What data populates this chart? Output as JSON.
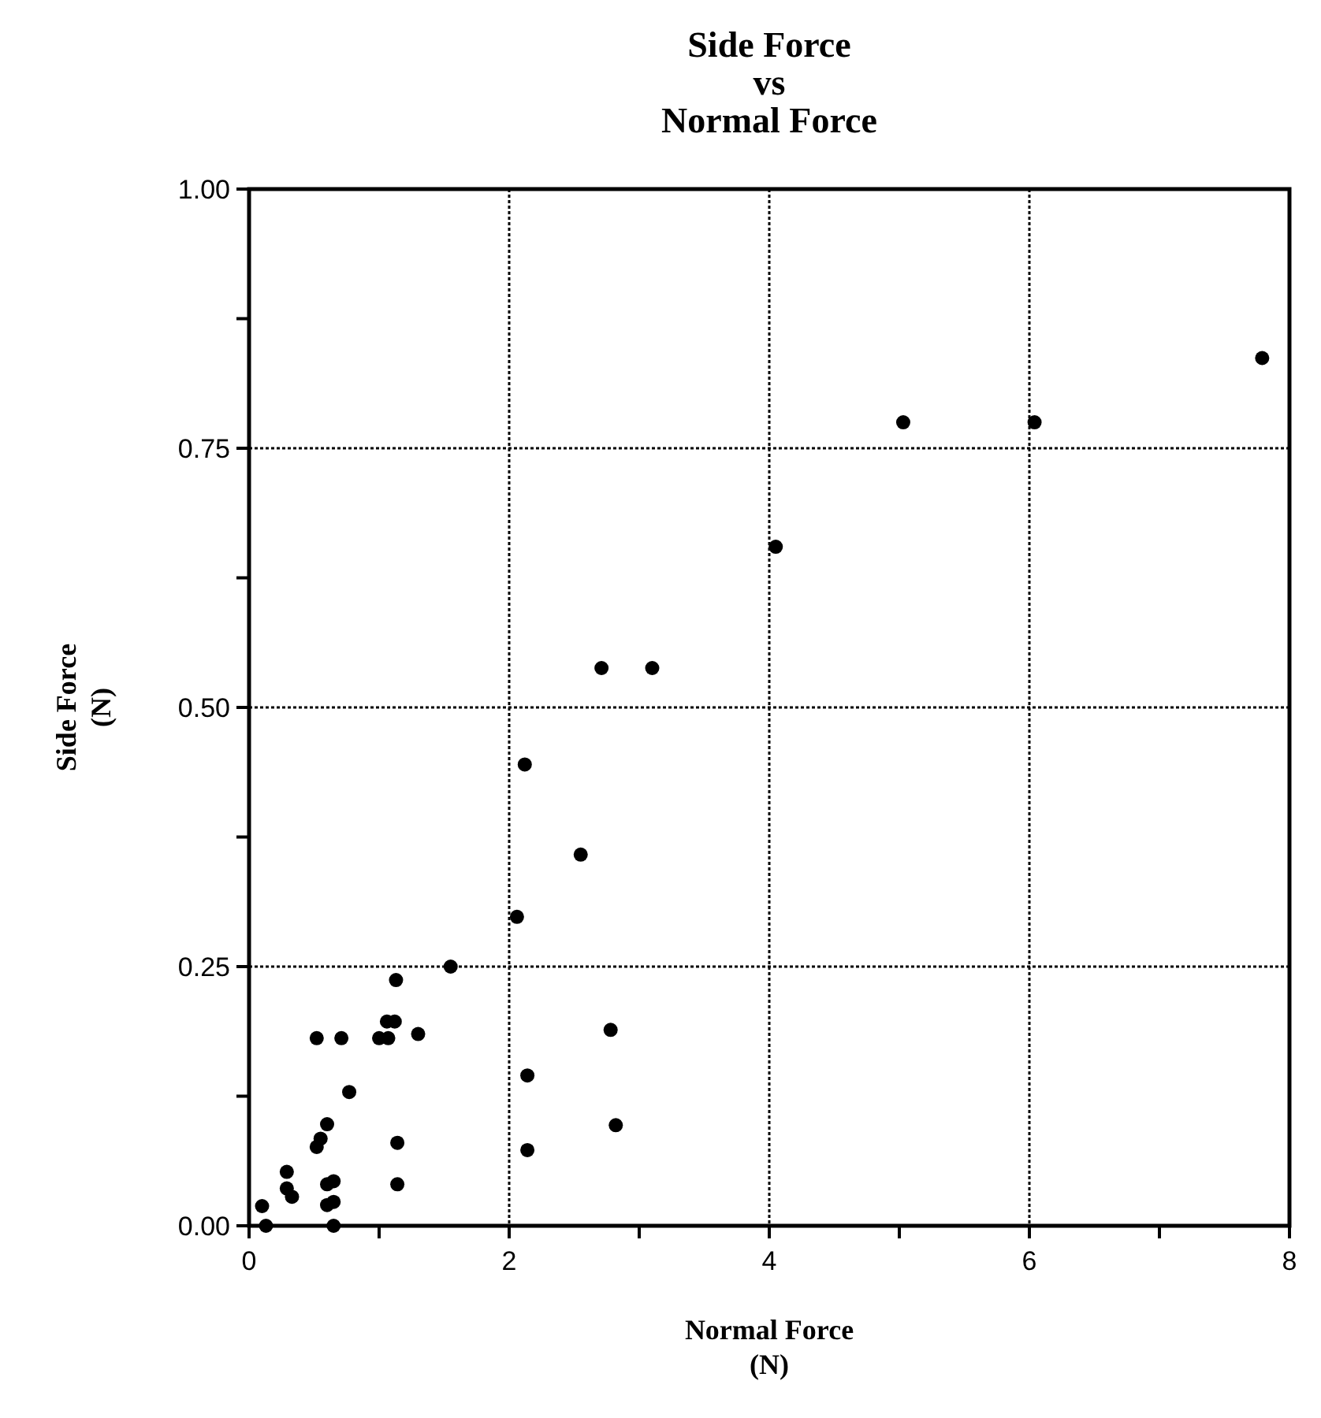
{
  "chart_data": {
    "type": "scatter",
    "title": "Side Force\nvs\nNormal Force",
    "xlabel": "Normal Force\n(N)",
    "ylabel": "Side Force\n(N)",
    "x": [
      0.1,
      0.13,
      0.29,
      0.29,
      0.33,
      0.52,
      0.71,
      1.0,
      1.07,
      1.06,
      1.12,
      1.13,
      1.3,
      1.55,
      2.06,
      0.77,
      0.6,
      0.55,
      0.52,
      0.6,
      0.65,
      0.6,
      0.65,
      0.65,
      1.14,
      1.14,
      2.78,
      2.14,
      2.14,
      2.82,
      2.71,
      3.1,
      2.12,
      2.55,
      4.05,
      5.03,
      6.04,
      7.79
    ],
    "values": [
      0.019,
      0.0,
      0.052,
      0.036,
      0.028,
      0.181,
      0.181,
      0.181,
      0.181,
      0.197,
      0.197,
      0.237,
      0.185,
      0.25,
      0.298,
      0.129,
      0.098,
      0.084,
      0.076,
      0.04,
      0.043,
      0.02,
      0.023,
      0.0,
      0.08,
      0.04,
      0.189,
      0.145,
      0.073,
      0.097,
      0.538,
      0.538,
      0.445,
      0.358,
      0.655,
      0.775,
      0.775,
      0.837
    ],
    "color": "#000000",
    "marker": "circle",
    "grid": true,
    "xlim": [
      0,
      8
    ],
    "xticks": [
      0,
      {
        "value": 1,
        "label": null
      },
      2,
      {
        "value": 3,
        "label": null
      },
      4,
      {
        "value": 5,
        "label": null
      },
      6,
      {
        "value": 7,
        "label": null
      },
      8
    ],
    "ylim": [
      0,
      1
    ],
    "yticks": [
      {
        "value": 0,
        "label": "0.00"
      },
      {
        "value": 0.125,
        "label": null
      },
      {
        "value": 0.25,
        "label": "0.25"
      },
      {
        "value": 0.375,
        "label": null
      },
      {
        "value": 0.5,
        "label": "0.50"
      },
      {
        "value": 0.625,
        "label": null
      },
      {
        "value": 0.75,
        "label": "0.75"
      },
      {
        "value": 0.875,
        "label": null
      },
      {
        "value": 1,
        "label": "1.00"
      }
    ]
  }
}
